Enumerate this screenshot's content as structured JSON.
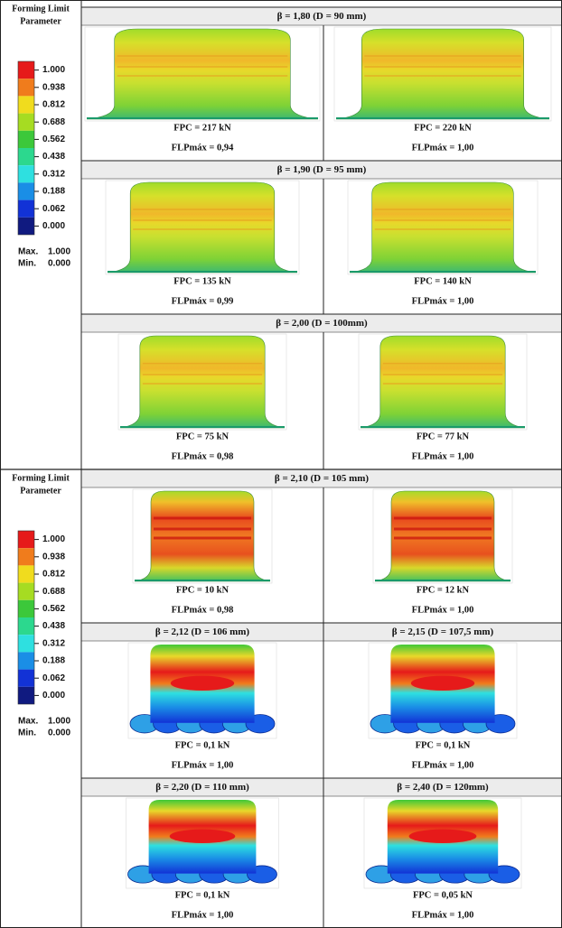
{
  "legends": [
    {
      "title": [
        "Forming Limit",
        "Parameter"
      ],
      "levels": [
        {
          "label": "1.000",
          "color": "#e61a1a"
        },
        {
          "label": "0.938",
          "color": "#f07c1c"
        },
        {
          "label": "0.812",
          "color": "#f0dc1e"
        },
        {
          "label": "0.688",
          "color": "#a6dc22"
        },
        {
          "label": "0.562",
          "color": "#3cc83a"
        },
        {
          "label": "0.438",
          "color": "#2cd88e"
        },
        {
          "label": "0.312",
          "color": "#2ee0e0"
        },
        {
          "label": "0.188",
          "color": "#1a8ee6"
        },
        {
          "label": "0.062",
          "color": "#1232d6"
        },
        {
          "label": "0.000",
          "color": "#101a80"
        }
      ],
      "max_label": "Max.",
      "max": "1.000",
      "min_label": "Min.",
      "min": "0.000"
    },
    {
      "title": [
        "Forming Limit",
        "Parameter"
      ],
      "levels": [
        {
          "label": "1.000",
          "color": "#e61a1a"
        },
        {
          "label": "0.938",
          "color": "#f07c1c"
        },
        {
          "label": "0.812",
          "color": "#f0dc1e"
        },
        {
          "label": "0.688",
          "color": "#a6dc22"
        },
        {
          "label": "0.562",
          "color": "#3cc83a"
        },
        {
          "label": "0.438",
          "color": "#2cd88e"
        },
        {
          "label": "0.312",
          "color": "#2ee0e0"
        },
        {
          "label": "0.188",
          "color": "#1a8ee6"
        },
        {
          "label": "0.062",
          "color": "#1232d6"
        },
        {
          "label": "0.000",
          "color": "#101a80"
        }
      ],
      "max_label": "Max.",
      "max": "1.000",
      "min_label": "Min.",
      "min": "0.000"
    }
  ],
  "rows": [
    {
      "header": "β = 1,80 (D = 90 mm)",
      "cells": [
        {
          "fpc": "FPC = 217 kN",
          "flp": "FLPmáx = 0,94"
        },
        {
          "fpc": "FPC = 220 kN",
          "flp": "FLPmáx = 1,00"
        }
      ]
    },
    {
      "header": "β = 1,90 (D = 95 mm)",
      "cells": [
        {
          "fpc": "FPC = 135 kN",
          "flp": "FLPmáx = 0,99"
        },
        {
          "fpc": "FPC =  140 kN",
          "flp": "FLPmáx = 1,00"
        }
      ]
    },
    {
      "header": "β = 2,00  (D = 100mm)",
      "cells": [
        {
          "fpc": "FPC = 75 kN",
          "flp": "FLPmáx = 0,98"
        },
        {
          "fpc": "FPC = 77 kN",
          "flp": "FLPmáx = 1,00"
        }
      ]
    },
    {
      "header": "β = 2,10  (D = 105 mm)",
      "cells": [
        {
          "fpc": "FPC = 10 kN",
          "flp": "FLPmáx = 0,98"
        },
        {
          "fpc": "FPC = 12 kN",
          "flp": "FLPmáx = 1,00"
        }
      ]
    },
    {
      "cells": [
        {
          "header": "β = 2,12  (D = 106 mm)",
          "fpc": "FPC = 0,1 kN",
          "flp": "FLPmáx = 1,00"
        },
        {
          "header": "β = 2,15  (D = 107,5 mm)",
          "fpc": "FPC = 0,1 kN",
          "flp": "FLPmáx = 1,00"
        }
      ]
    },
    {
      "cells": [
        {
          "header": "β = 2,20  (D = 110 mm)",
          "fpc": "FPC = 0,1 kN",
          "flp": "FLPmáx = 1,00"
        },
        {
          "header": "β = 2,40  (D = 120mm)",
          "fpc": "FPC = 0,05 kN",
          "flp": "FLPmáx = 1,00"
        }
      ]
    }
  ]
}
